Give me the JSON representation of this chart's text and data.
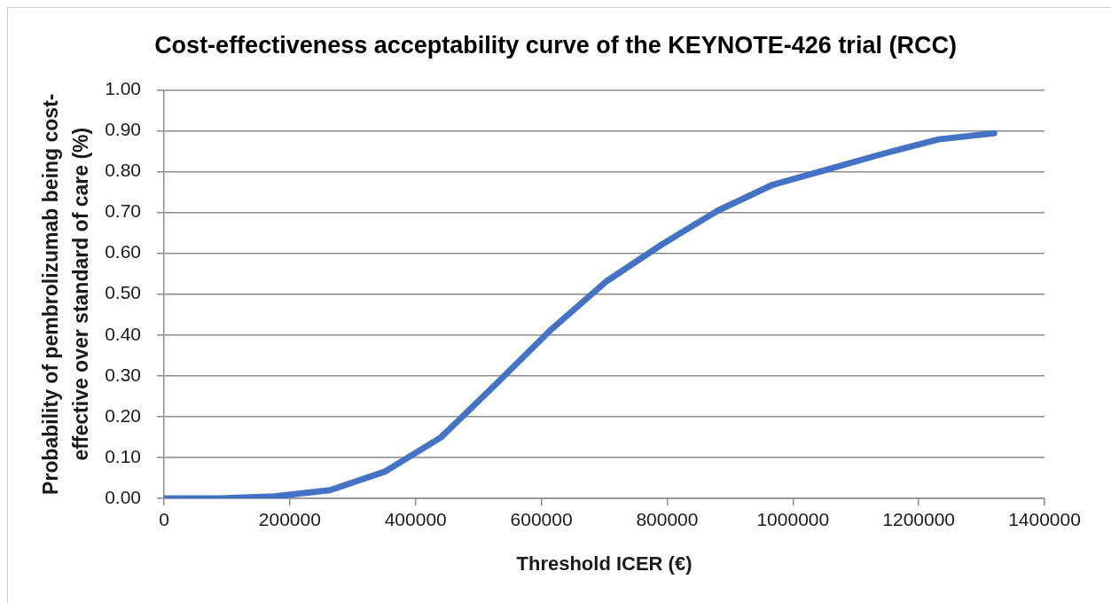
{
  "chart_data": {
    "type": "line",
    "title": "Cost-effectiveness acceptability curve of the KEYNOTE-426 trial (RCC)",
    "xlabel": "Threshold ICER (€)",
    "ylabel": "Probability of pembrolizumab being cost-effective over standard of care (%)",
    "x": [
      0,
      88000,
      176000,
      264000,
      352000,
      440000,
      528000,
      616000,
      704000,
      792000,
      880000,
      968000,
      1056000,
      1144000,
      1232000,
      1320000
    ],
    "values": [
      0,
      0,
      0.005,
      0.02,
      0.066,
      0.149,
      0.28,
      0.414,
      0.532,
      0.622,
      0.704,
      0.768,
      0.806,
      0.844,
      0.879,
      0.894
    ],
    "color": "#4472c4",
    "xlim": [
      0,
      1400000
    ],
    "xticks": [
      0,
      200000,
      400000,
      600000,
      800000,
      1000000,
      1200000,
      1400000
    ],
    "ylim": [
      0,
      1
    ],
    "yticks": [
      {
        "value": 0,
        "label": "0.00"
      },
      {
        "value": 0.1,
        "label": "0.10"
      },
      {
        "value": 0.2,
        "label": "0.20"
      },
      {
        "value": 0.3,
        "label": "0.30"
      },
      {
        "value": 0.4,
        "label": "0.40"
      },
      {
        "value": 0.5,
        "label": "0.50"
      },
      {
        "value": 0.6,
        "label": "0.60"
      },
      {
        "value": 0.7,
        "label": "0.70"
      },
      {
        "value": 0.8,
        "label": "0.80"
      },
      {
        "value": 0.9,
        "label": "0.90"
      },
      {
        "value": 1,
        "label": "1.00"
      }
    ],
    "grid": "y",
    "marker": "none",
    "line_style": "solid"
  }
}
